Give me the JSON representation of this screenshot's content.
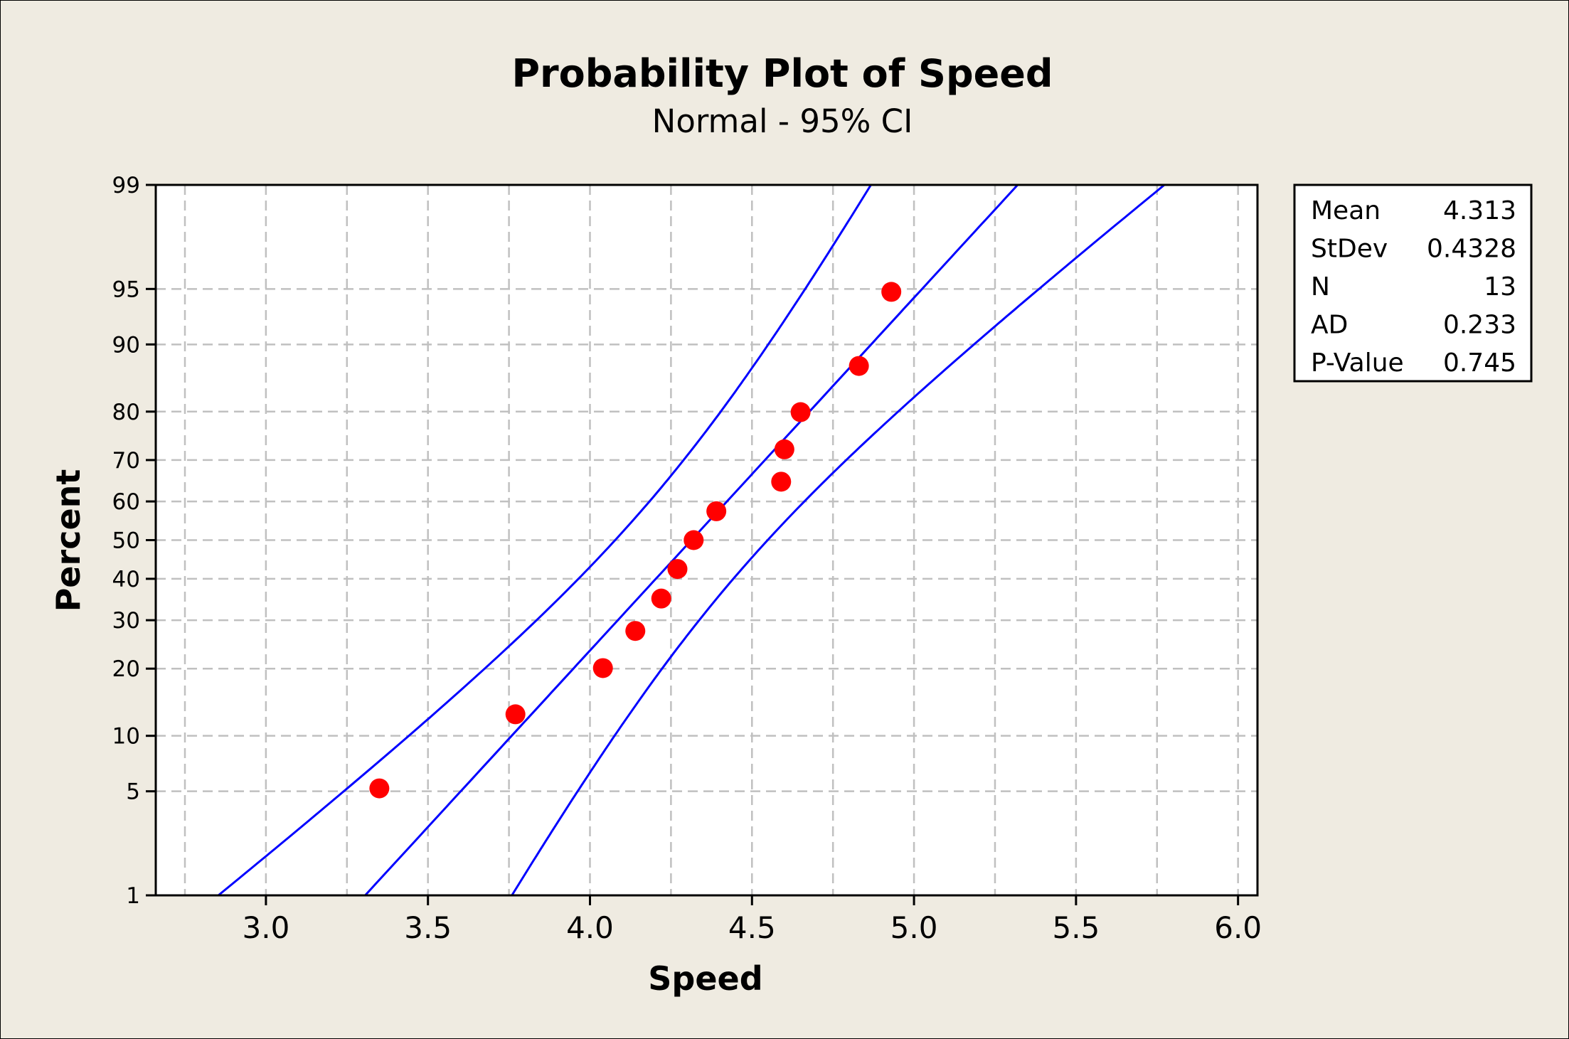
{
  "chart_data": {
    "type": "scatter",
    "title": "Probability Plot of Speed",
    "subtitle": "Normal - 95% CI",
    "xlabel": "Speed",
    "ylabel": "Percent",
    "xlim": [
      2.66,
      6.06
    ],
    "ylim": [
      1,
      99
    ],
    "y_scale": "normal-probability",
    "grid": true,
    "x_ticks": [
      "3.0",
      "3.5",
      "4.0",
      "4.5",
      "5.0",
      "5.5",
      "6.0"
    ],
    "x_tick_values": [
      3.0,
      3.5,
      4.0,
      4.5,
      5.0,
      5.5,
      6.0
    ],
    "x_grid_values": [
      2.75,
      3.0,
      3.25,
      3.5,
      3.75,
      4.0,
      4.25,
      4.5,
      4.75,
      5.0,
      5.25,
      5.5,
      5.75,
      6.0
    ],
    "y_ticks": [
      "1",
      "5",
      "10",
      "20",
      "30",
      "40",
      "50",
      "60",
      "70",
      "80",
      "90",
      "95",
      "99"
    ],
    "y_tick_values": [
      1,
      5,
      10,
      20,
      30,
      40,
      50,
      60,
      70,
      80,
      90,
      95,
      99
    ],
    "points": {
      "x": [
        3.35,
        3.77,
        4.04,
        4.14,
        4.22,
        4.27,
        4.32,
        4.39,
        4.59,
        4.6,
        4.65,
        4.83,
        4.93
      ],
      "percent": [
        5.2,
        12.7,
        20.1,
        27.6,
        35.1,
        42.5,
        50.0,
        57.5,
        64.9,
        72.4,
        79.9,
        87.3,
        94.8
      ]
    },
    "fit": {
      "distribution": "Normal",
      "mean": 4.313,
      "stdev": 0.4328,
      "n": 13,
      "ci_level": 95
    },
    "colors": {
      "points": "#ff0000",
      "lines": "#0000ff",
      "background": "#efebe1",
      "plot_bg": "#ffffff",
      "grid": "#c0c0c0"
    },
    "legend": {
      "placement": "top-right",
      "rows": [
        {
          "label": "Mean",
          "value": "4.313"
        },
        {
          "label": "StDev",
          "value": "0.4328"
        },
        {
          "label": "N",
          "value": "13"
        },
        {
          "label": "AD",
          "value": "0.233"
        },
        {
          "label": "P-Value",
          "value": "0.745"
        }
      ]
    }
  }
}
